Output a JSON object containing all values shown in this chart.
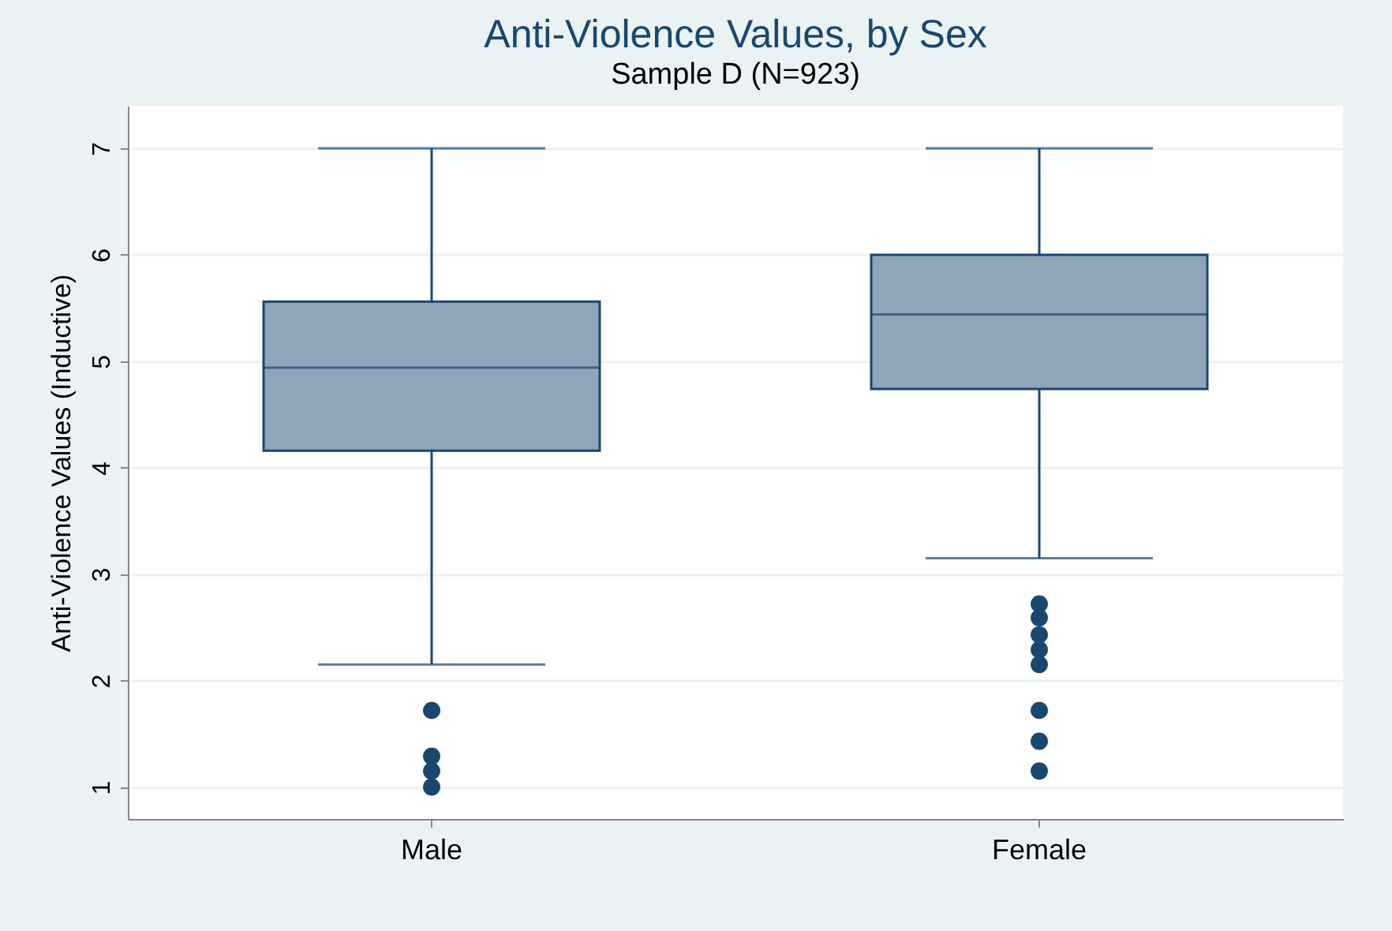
{
  "chart_data": {
    "type": "box",
    "title": "Anti-Violence Values, by Sex",
    "subtitle": "Sample D (N=923)",
    "ylabel": "Anti-Violence Values (Inductive)",
    "categories": [
      "Male",
      "Female"
    ],
    "color": "#8fa5b9",
    "boxes": [
      {
        "low": 2.15,
        "q1": 4.16,
        "median": 4.94,
        "q3": 5.56,
        "high": 7,
        "outliers": [
          1.72,
          1.29,
          1.15,
          1.0
        ]
      },
      {
        "low": 3.15,
        "q1": 4.74,
        "median": 5.44,
        "q3": 6.0,
        "high": 7,
        "outliers": [
          2.72,
          2.59,
          2.43,
          2.29,
          2.15,
          1.72,
          1.43,
          1.15
        ]
      }
    ],
    "ylim": [
      0.7,
      7.4
    ],
    "yticks": [
      1,
      2,
      3,
      4,
      5,
      6,
      7
    ],
    "grid": "y"
  }
}
